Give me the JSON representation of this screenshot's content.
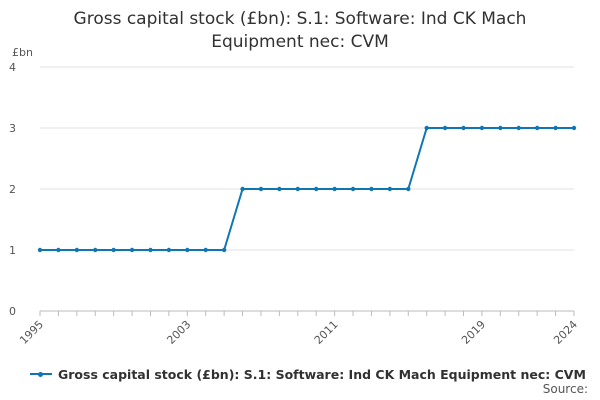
{
  "chart_data": {
    "type": "line",
    "title_lines": [
      "Gross capital stock (£bn): S.1: Software: Ind CK Mach",
      "Equipment nec: CVM"
    ],
    "ylabel": "£bn",
    "xlabel": "",
    "ylim": [
      0,
      4
    ],
    "y_ticks": [
      "0",
      "1",
      "2",
      "3",
      "4"
    ],
    "xlim": [
      1995,
      2024
    ],
    "x_tick_labels": [
      "1995",
      "2003",
      "2011",
      "2019",
      "2024"
    ],
    "grid": "horizontal",
    "legend_position": "bottom",
    "series": [
      {
        "name": "Gross capital stock (£bn): S.1: Software: Ind CK Mach Equipment nec: CVM",
        "color": "#0f76b3",
        "x": [
          1995,
          1996,
          1997,
          1998,
          1999,
          2000,
          2001,
          2002,
          2003,
          2004,
          2005,
          2006,
          2007,
          2008,
          2009,
          2010,
          2011,
          2012,
          2013,
          2014,
          2015,
          2016,
          2017,
          2018,
          2019,
          2020,
          2021,
          2022,
          2023,
          2024
        ],
        "values": [
          1,
          1,
          1,
          1,
          1,
          1,
          1,
          1,
          1,
          1,
          1,
          2,
          2,
          2,
          2,
          2,
          2,
          2,
          2,
          2,
          2,
          3,
          3,
          3,
          3,
          3,
          3,
          3,
          3,
          3
        ]
      }
    ]
  },
  "footer": {
    "source_label": "Source:"
  }
}
